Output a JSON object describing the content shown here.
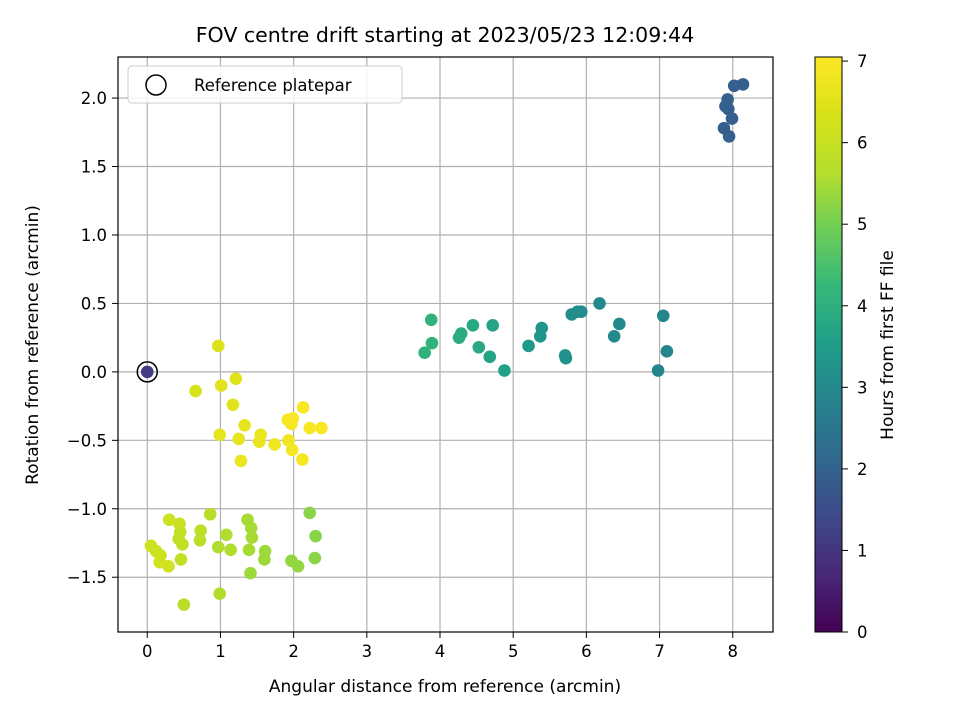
{
  "chart_data": {
    "type": "scatter",
    "title": "FOV centre drift starting at 2023/05/23 12:09:44",
    "xlabel": "Angular distance from reference (arcmin)",
    "ylabel": "Rotation from reference (arcmin)",
    "xlim": [
      -0.4,
      8.55
    ],
    "ylim": [
      -1.9,
      2.3
    ],
    "xticks": [
      0,
      1,
      2,
      3,
      4,
      5,
      6,
      7,
      8
    ],
    "yticks": [
      -1.5,
      -1.0,
      -0.5,
      0.0,
      0.5,
      1.0,
      1.5,
      2.0
    ],
    "grid": true,
    "legend": {
      "position": "upper-left",
      "entries": [
        "Reference platepar"
      ]
    },
    "reference_point": {
      "x": 0.0,
      "y": 0.0,
      "hours": 1.1
    },
    "colorbar": {
      "label": "Hours from first FF file",
      "range": [
        0,
        7.05
      ],
      "ticks": [
        0,
        1,
        2,
        3,
        4,
        5,
        6,
        7
      ],
      "colormap": "viridis"
    },
    "points": [
      {
        "x": 8.14,
        "y": 2.1,
        "hours": 1.9
      },
      {
        "x": 8.02,
        "y": 2.09,
        "hours": 1.9
      },
      {
        "x": 7.93,
        "y": 1.99,
        "hours": 1.9
      },
      {
        "x": 7.9,
        "y": 1.94,
        "hours": 1.9
      },
      {
        "x": 7.94,
        "y": 1.92,
        "hours": 1.9
      },
      {
        "x": 7.99,
        "y": 1.85,
        "hours": 1.9
      },
      {
        "x": 7.88,
        "y": 1.78,
        "hours": 1.9
      },
      {
        "x": 7.95,
        "y": 1.72,
        "hours": 1.9
      },
      {
        "x": 6.18,
        "y": 0.5,
        "hours": 3.0
      },
      {
        "x": 5.93,
        "y": 0.44,
        "hours": 3.1
      },
      {
        "x": 5.88,
        "y": 0.44,
        "hours": 3.1
      },
      {
        "x": 5.8,
        "y": 0.42,
        "hours": 3.1
      },
      {
        "x": 6.45,
        "y": 0.35,
        "hours": 3.0
      },
      {
        "x": 6.38,
        "y": 0.26,
        "hours": 3.0
      },
      {
        "x": 7.05,
        "y": 0.41,
        "hours": 2.9
      },
      {
        "x": 7.1,
        "y": 0.15,
        "hours": 2.9
      },
      {
        "x": 6.98,
        "y": 0.01,
        "hours": 2.9
      },
      {
        "x": 5.39,
        "y": 0.32,
        "hours": 3.3
      },
      {
        "x": 5.37,
        "y": 0.26,
        "hours": 3.3
      },
      {
        "x": 5.21,
        "y": 0.19,
        "hours": 3.4
      },
      {
        "x": 5.71,
        "y": 0.12,
        "hours": 3.2
      },
      {
        "x": 5.72,
        "y": 0.1,
        "hours": 3.2
      },
      {
        "x": 4.88,
        "y": 0.01,
        "hours": 3.6
      },
      {
        "x": 4.72,
        "y": 0.34,
        "hours": 3.7
      },
      {
        "x": 4.45,
        "y": 0.34,
        "hours": 3.8
      },
      {
        "x": 4.29,
        "y": 0.28,
        "hours": 3.9
      },
      {
        "x": 4.26,
        "y": 0.25,
        "hours": 3.9
      },
      {
        "x": 4.53,
        "y": 0.18,
        "hours": 3.8
      },
      {
        "x": 4.68,
        "y": 0.11,
        "hours": 3.7
      },
      {
        "x": 3.88,
        "y": 0.38,
        "hours": 4.1
      },
      {
        "x": 3.89,
        "y": 0.21,
        "hours": 4.1
      },
      {
        "x": 3.79,
        "y": 0.14,
        "hours": 4.1
      },
      {
        "x": 2.22,
        "y": -1.03,
        "hours": 5.2
      },
      {
        "x": 2.3,
        "y": -1.2,
        "hours": 5.2
      },
      {
        "x": 2.29,
        "y": -1.36,
        "hours": 5.2
      },
      {
        "x": 1.97,
        "y": -1.38,
        "hours": 5.3
      },
      {
        "x": 2.06,
        "y": -1.42,
        "hours": 5.3
      },
      {
        "x": 1.61,
        "y": -1.31,
        "hours": 5.4
      },
      {
        "x": 1.6,
        "y": -1.37,
        "hours": 5.4
      },
      {
        "x": 1.41,
        "y": -1.47,
        "hours": 5.4
      },
      {
        "x": 1.37,
        "y": -1.08,
        "hours": 5.5
      },
      {
        "x": 1.42,
        "y": -1.14,
        "hours": 5.5
      },
      {
        "x": 1.43,
        "y": -1.21,
        "hours": 5.5
      },
      {
        "x": 1.39,
        "y": -1.3,
        "hours": 5.5
      },
      {
        "x": 1.14,
        "y": -1.3,
        "hours": 5.6
      },
      {
        "x": 1.08,
        "y": -1.19,
        "hours": 5.6
      },
      {
        "x": 0.97,
        "y": -1.28,
        "hours": 5.6
      },
      {
        "x": 0.86,
        "y": -1.04,
        "hours": 5.7
      },
      {
        "x": 0.73,
        "y": -1.16,
        "hours": 5.8
      },
      {
        "x": 0.72,
        "y": -1.23,
        "hours": 5.8
      },
      {
        "x": 0.99,
        "y": -1.62,
        "hours": 5.6
      },
      {
        "x": 0.5,
        "y": -1.7,
        "hours": 5.7
      },
      {
        "x": 0.48,
        "y": -1.26,
        "hours": 5.9
      },
      {
        "x": 0.43,
        "y": -1.22,
        "hours": 5.9
      },
      {
        "x": 0.45,
        "y": -1.17,
        "hours": 5.9
      },
      {
        "x": 0.44,
        "y": -1.11,
        "hours": 6.0
      },
      {
        "x": 0.46,
        "y": -1.37,
        "hours": 5.9
      },
      {
        "x": 0.3,
        "y": -1.08,
        "hours": 6.1
      },
      {
        "x": 0.05,
        "y": -1.27,
        "hours": 6.1
      },
      {
        "x": 0.12,
        "y": -1.31,
        "hours": 6.1
      },
      {
        "x": 0.18,
        "y": -1.34,
        "hours": 6.1
      },
      {
        "x": 0.17,
        "y": -1.39,
        "hours": 6.2
      },
      {
        "x": 0.29,
        "y": -1.42,
        "hours": 6.2
      },
      {
        "x": 0.97,
        "y": 0.19,
        "hours": 6.4
      },
      {
        "x": 0.66,
        "y": -0.14,
        "hours": 6.3
      },
      {
        "x": 1.01,
        "y": -0.1,
        "hours": 6.5
      },
      {
        "x": 1.21,
        "y": -0.05,
        "hours": 6.5
      },
      {
        "x": 1.17,
        "y": -0.24,
        "hours": 6.5
      },
      {
        "x": 1.33,
        "y": -0.39,
        "hours": 6.6
      },
      {
        "x": 1.25,
        "y": -0.49,
        "hours": 6.6
      },
      {
        "x": 0.99,
        "y": -0.46,
        "hours": 6.6
      },
      {
        "x": 1.28,
        "y": -0.65,
        "hours": 6.7
      },
      {
        "x": 1.55,
        "y": -0.46,
        "hours": 6.7
      },
      {
        "x": 1.53,
        "y": -0.51,
        "hours": 6.7
      },
      {
        "x": 1.74,
        "y": -0.53,
        "hours": 6.8
      },
      {
        "x": 1.93,
        "y": -0.5,
        "hours": 6.8
      },
      {
        "x": 1.98,
        "y": -0.57,
        "hours": 6.9
      },
      {
        "x": 2.12,
        "y": -0.64,
        "hours": 6.9
      },
      {
        "x": 1.92,
        "y": -0.35,
        "hours": 6.9
      },
      {
        "x": 1.97,
        "y": -0.38,
        "hours": 6.9
      },
      {
        "x": 1.99,
        "y": -0.34,
        "hours": 7.0
      },
      {
        "x": 2.13,
        "y": -0.26,
        "hours": 7.0
      },
      {
        "x": 2.22,
        "y": -0.41,
        "hours": 7.0
      },
      {
        "x": 2.38,
        "y": -0.41,
        "hours": 7.0
      }
    ]
  }
}
